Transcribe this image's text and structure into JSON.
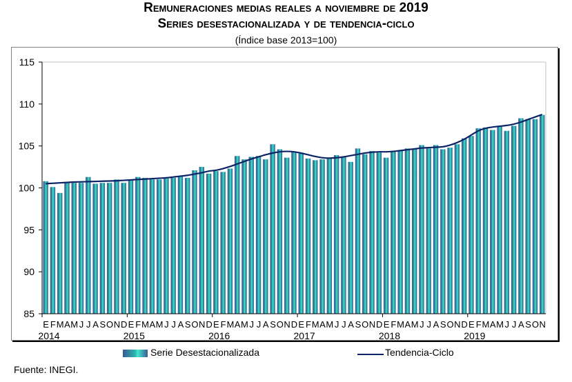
{
  "chart_data": {
    "type": "bar",
    "title": "Remuneraciones medias reales a noviembre de 2019",
    "subtitle": "Series desestacionalizada y de tendencia-ciclo",
    "note": "(Índice base 2013=100)",
    "xlabel": "",
    "ylabel": "",
    "ylim": [
      85,
      115
    ],
    "yticks": [
      "115",
      "110",
      "105",
      "100",
      "95",
      "90",
      "85"
    ],
    "month_letters": [
      "E",
      "F",
      "M",
      "A",
      "M",
      "J",
      "J",
      "A",
      "S",
      "O",
      "N",
      "D"
    ],
    "last_year_month_letters": [
      "E",
      "F",
      "M",
      "A",
      "M",
      "J",
      "J",
      "A",
      "S",
      "O",
      "N"
    ],
    "years": [
      "2014",
      "2015",
      "2016",
      "2017",
      "2018",
      "2019"
    ],
    "series": [
      {
        "name": "Serie Desestacionalizada",
        "type": "bar",
        "values": [
          100.8,
          100.1,
          99.4,
          100.7,
          100.6,
          100.6,
          101.3,
          100.5,
          100.6,
          100.6,
          101.0,
          100.6,
          100.9,
          101.3,
          101.2,
          101.0,
          101.0,
          101.1,
          101.2,
          101.4,
          101.2,
          102.1,
          102.5,
          101.7,
          102.0,
          101.9,
          102.3,
          103.8,
          103.4,
          103.7,
          103.8,
          103.4,
          105.2,
          104.6,
          103.6,
          104.3,
          104.1,
          103.5,
          103.3,
          103.4,
          103.5,
          103.9,
          103.7,
          103.1,
          104.7,
          104.0,
          104.4,
          104.2,
          103.6,
          104.3,
          104.5,
          104.7,
          104.7,
          105.1,
          104.7,
          105.1,
          104.6,
          104.8,
          105.2,
          105.9,
          106.2,
          107.1,
          107.2,
          106.9,
          107.3,
          106.8,
          107.4,
          108.3,
          108.2,
          108.2,
          108.7
        ]
      },
      {
        "name": "Tendencia-Ciclo",
        "type": "line",
        "values": [
          100.5,
          100.55,
          100.6,
          100.65,
          100.7,
          100.72,
          100.75,
          100.77,
          100.8,
          100.82,
          100.85,
          100.9,
          100.95,
          101.0,
          101.05,
          101.1,
          101.15,
          101.2,
          101.3,
          101.4,
          101.5,
          101.65,
          101.8,
          102.0,
          102.1,
          102.3,
          102.55,
          102.85,
          103.15,
          103.45,
          103.7,
          103.95,
          104.15,
          104.3,
          104.35,
          104.3,
          104.15,
          103.95,
          103.75,
          103.6,
          103.55,
          103.6,
          103.7,
          103.85,
          104.0,
          104.15,
          104.25,
          104.3,
          104.3,
          104.35,
          104.45,
          104.55,
          104.65,
          104.75,
          104.8,
          104.85,
          104.9,
          105.1,
          105.4,
          105.8,
          106.3,
          106.8,
          107.1,
          107.25,
          107.35,
          107.45,
          107.6,
          107.85,
          108.15,
          108.45,
          108.75
        ]
      }
    ],
    "legend": "bottom",
    "grid": false
  },
  "colors": {
    "bar_dark": "#3c5a92",
    "bar_light": "#40e8d0",
    "line": "#0c2466"
  },
  "legend": {
    "bar_label": "Serie Desestacionalizada",
    "line_label": "Tendencia-Ciclo"
  },
  "titles": {
    "line1": "Remuneraciones medias reales a noviembre de 2019",
    "line2": "Series desestacionalizada y de tendencia-ciclo",
    "line3": "(Índice base 2013=100)"
  },
  "source": "Fuente: INEGI."
}
